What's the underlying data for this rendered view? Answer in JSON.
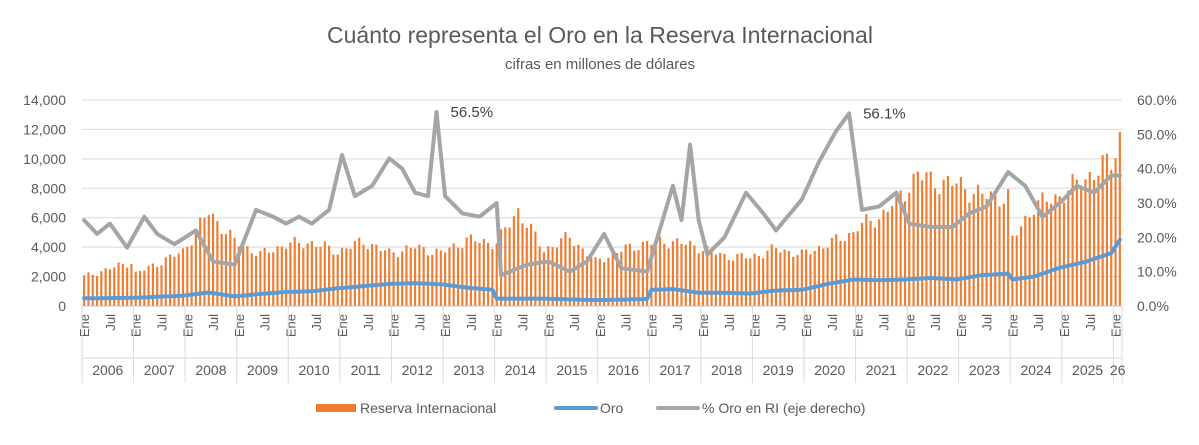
{
  "chart_data": {
    "type": "bar+line",
    "title": "Cuánto representa el Oro en la Reserva Internacional",
    "subtitle": "cifras en millones de dólares",
    "y_left": {
      "ticks": [
        "0",
        "2,000",
        "4,000",
        "6,000",
        "8,000",
        "10,000",
        "12,000",
        "14,000"
      ],
      "min": 0,
      "max": 14000
    },
    "y_right": {
      "ticks": [
        "0.0%",
        "10.0%",
        "20.0%",
        "30.0%",
        "40.0%",
        "50.0%",
        "60.0%"
      ],
      "min": 0,
      "max": 0.6
    },
    "x": {
      "start": "2006-01",
      "end": "2026-02",
      "month_labels": {
        "ene": "Ene",
        "jul": "Jul"
      },
      "year_labels": [
        "2006",
        "2007",
        "2008",
        "2009",
        "2010",
        "2011",
        "2012",
        "2013",
        "2014",
        "2015",
        "2016",
        "2017",
        "2018",
        "2019",
        "2020",
        "2021",
        "2022",
        "2023",
        "2024",
        "2025",
        "26"
      ]
    },
    "annotations": [
      {
        "text": "56.5%",
        "date": "2012-11",
        "value": 0.565
      },
      {
        "text": "56.1%",
        "date": "2020-11",
        "value": 0.561
      }
    ],
    "legend": {
      "position": "bottom",
      "entries": [
        {
          "name": "Reserva Internacional",
          "color": "#ED7D31",
          "kind": "bar"
        },
        {
          "name": "Oro",
          "color": "#5B9BD5",
          "kind": "line"
        },
        {
          "name": "% Oro en RI (eje derecho)",
          "color": "#A5A5A5",
          "kind": "line"
        }
      ]
    },
    "series": [
      {
        "name": "Reserva Internacional",
        "axis": "left",
        "color": "#ED7D31",
        "knots": [
          [
            "2006-01",
            2000
          ],
          [
            "2006-12",
            3000
          ],
          [
            "2007-01",
            2200
          ],
          [
            "2007-12",
            3700
          ],
          [
            "2008-06",
            6400
          ],
          [
            "2008-12",
            4400
          ],
          [
            "2009-06",
            3500
          ],
          [
            "2009-12",
            4200
          ],
          [
            "2010-06",
            4300
          ],
          [
            "2010-12",
            3700
          ],
          [
            "2011-06",
            4400
          ],
          [
            "2011-12",
            3600
          ],
          [
            "2012-06",
            4000
          ],
          [
            "2012-12",
            3600
          ],
          [
            "2013-06",
            4500
          ],
          [
            "2013-12",
            4300
          ],
          [
            "2014-01",
            4300
          ],
          [
            "2014-06",
            6500
          ],
          [
            "2014-12",
            3800
          ],
          [
            "2015-06",
            4700
          ],
          [
            "2015-12",
            3000
          ],
          [
            "2016-06",
            3800
          ],
          [
            "2016-12",
            4300
          ],
          [
            "2017-06",
            4400
          ],
          [
            "2017-12",
            4000
          ],
          [
            "2018-06",
            3400
          ],
          [
            "2018-12",
            3300
          ],
          [
            "2019-06",
            3900
          ],
          [
            "2019-12",
            3500
          ],
          [
            "2020-06",
            4200
          ],
          [
            "2020-12",
            5000
          ],
          [
            "2021-01",
            5400
          ],
          [
            "2021-06",
            6000
          ],
          [
            "2021-12",
            7800
          ],
          [
            "2022-03",
            9000
          ],
          [
            "2022-06",
            8500
          ],
          [
            "2022-12",
            8300
          ],
          [
            "2023-06",
            7500
          ],
          [
            "2023-12",
            7400
          ],
          [
            "2024-01",
            4500
          ],
          [
            "2024-06",
            6800
          ],
          [
            "2024-12",
            7500
          ],
          [
            "2025-06",
            8700
          ],
          [
            "2025-12",
            9800
          ],
          [
            "2026-02",
            11500
          ]
        ]
      },
      {
        "name": "Oro",
        "axis": "left",
        "color": "#5B9BD5",
        "knots": [
          [
            "2006-01",
            520
          ],
          [
            "2007-01",
            560
          ],
          [
            "2007-12",
            700
          ],
          [
            "2008-06",
            920
          ],
          [
            "2008-12",
            650
          ],
          [
            "2009-06",
            820
          ],
          [
            "2009-12",
            950
          ],
          [
            "2010-06",
            1000
          ],
          [
            "2010-12",
            1200
          ],
          [
            "2011-06",
            1350
          ],
          [
            "2011-12",
            1500
          ],
          [
            "2012-06",
            1550
          ],
          [
            "2012-12",
            1480
          ],
          [
            "2013-06",
            1250
          ],
          [
            "2013-12",
            1100
          ],
          [
            "2014-01",
            500
          ],
          [
            "2014-12",
            500
          ],
          [
            "2015-06",
            450
          ],
          [
            "2015-12",
            400
          ],
          [
            "2016-06",
            430
          ],
          [
            "2016-12",
            480
          ],
          [
            "2017-01",
            1100
          ],
          [
            "2017-06",
            1150
          ],
          [
            "2017-12",
            900
          ],
          [
            "2018-06",
            900
          ],
          [
            "2018-12",
            850
          ],
          [
            "2019-06",
            1050
          ],
          [
            "2019-12",
            1100
          ],
          [
            "2020-06",
            1500
          ],
          [
            "2020-12",
            1800
          ],
          [
            "2021-06",
            1750
          ],
          [
            "2021-12",
            1800
          ],
          [
            "2022-06",
            1900
          ],
          [
            "2022-12",
            1800
          ],
          [
            "2023-06",
            2100
          ],
          [
            "2023-12",
            2200
          ],
          [
            "2024-01",
            1800
          ],
          [
            "2024-06",
            2000
          ],
          [
            "2024-12",
            2600
          ],
          [
            "2025-06",
            3000
          ],
          [
            "2025-12",
            3600
          ],
          [
            "2026-02",
            4500
          ]
        ]
      },
      {
        "name": "% Oro en RI (eje derecho)",
        "axis": "right",
        "color": "#A5A5A5",
        "knots": [
          [
            "2006-01",
            0.25
          ],
          [
            "2006-04",
            0.21
          ],
          [
            "2006-07",
            0.24
          ],
          [
            "2006-11",
            0.17
          ],
          [
            "2007-03",
            0.26
          ],
          [
            "2007-06",
            0.21
          ],
          [
            "2007-10",
            0.18
          ],
          [
            "2008-03",
            0.22
          ],
          [
            "2008-07",
            0.13
          ],
          [
            "2008-12",
            0.12
          ],
          [
            "2009-05",
            0.28
          ],
          [
            "2009-09",
            0.26
          ],
          [
            "2009-12",
            0.24
          ],
          [
            "2010-03",
            0.26
          ],
          [
            "2010-06",
            0.24
          ],
          [
            "2010-10",
            0.28
          ],
          [
            "2011-01",
            0.44
          ],
          [
            "2011-04",
            0.32
          ],
          [
            "2011-08",
            0.35
          ],
          [
            "2011-12",
            0.43
          ],
          [
            "2012-03",
            0.4
          ],
          [
            "2012-06",
            0.33
          ],
          [
            "2012-09",
            0.32
          ],
          [
            "2012-11",
            0.565
          ],
          [
            "2013-01",
            0.32
          ],
          [
            "2013-05",
            0.27
          ],
          [
            "2013-09",
            0.26
          ],
          [
            "2014-01",
            0.3
          ],
          [
            "2014-02",
            0.09
          ],
          [
            "2014-08",
            0.12
          ],
          [
            "2015-01",
            0.13
          ],
          [
            "2015-06",
            0.1
          ],
          [
            "2015-10",
            0.13
          ],
          [
            "2016-02",
            0.21
          ],
          [
            "2016-06",
            0.11
          ],
          [
            "2016-12",
            0.1
          ],
          [
            "2017-06",
            0.35
          ],
          [
            "2017-08",
            0.25
          ],
          [
            "2017-10",
            0.47
          ],
          [
            "2017-12",
            0.25
          ],
          [
            "2018-02",
            0.15
          ],
          [
            "2018-06",
            0.2
          ],
          [
            "2018-11",
            0.33
          ],
          [
            "2019-03",
            0.27
          ],
          [
            "2019-06",
            0.22
          ],
          [
            "2019-12",
            0.31
          ],
          [
            "2020-04",
            0.42
          ],
          [
            "2020-08",
            0.51
          ],
          [
            "2020-11",
            0.561
          ],
          [
            "2021-02",
            0.28
          ],
          [
            "2021-06",
            0.29
          ],
          [
            "2021-10",
            0.33
          ],
          [
            "2022-01",
            0.24
          ],
          [
            "2022-06",
            0.23
          ],
          [
            "2022-11",
            0.23
          ],
          [
            "2023-03",
            0.27
          ],
          [
            "2023-07",
            0.29
          ],
          [
            "2023-12",
            0.39
          ],
          [
            "2024-04",
            0.35
          ],
          [
            "2024-08",
            0.26
          ],
          [
            "2024-12",
            0.3
          ],
          [
            "2025-04",
            0.35
          ],
          [
            "2025-08",
            0.33
          ],
          [
            "2025-12",
            0.38
          ],
          [
            "2026-02",
            0.38
          ]
        ]
      }
    ]
  }
}
